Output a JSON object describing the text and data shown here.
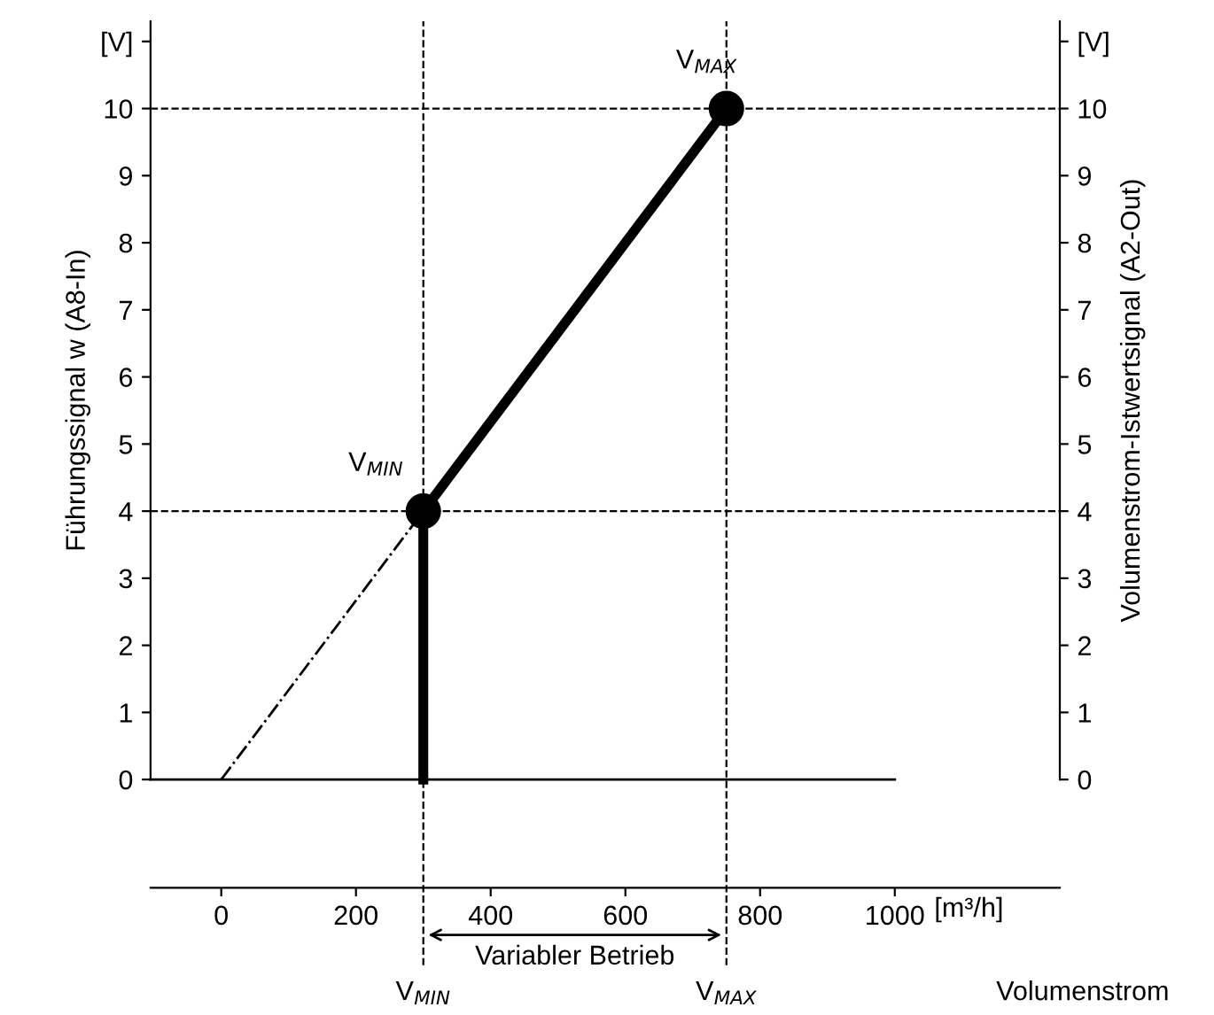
{
  "chart_data": {
    "type": "line",
    "xlabel": "[m³/h]",
    "ylabel": "Führungssignal w (A8-In)",
    "y2label": "Volumenstrom-Istwertsignal (A2-Out)",
    "xlim": [
      -105,
      1245
    ],
    "ylim": [
      0,
      11.3
    ],
    "y2lim": [
      0,
      11.3
    ],
    "xticks": [
      0,
      200,
      400,
      600,
      800,
      1000
    ],
    "yticks": [
      0,
      1,
      2,
      3,
      4,
      5,
      6,
      7,
      8,
      9,
      10,
      {
        "value": 11,
        "label": "[V]"
      }
    ],
    "y2ticks": [
      0,
      1,
      2,
      3,
      4,
      5,
      6,
      7,
      8,
      9,
      10,
      {
        "value": 11,
        "label": "[V]"
      }
    ],
    "series": [
      {
        "x": [
          -105,
          1000
        ],
        "values": [
          0,
          0
        ],
        "color": "#000000",
        "marker": "none",
        "line_style": "solid"
      },
      {
        "x": [
          0,
          300
        ],
        "values": [
          0,
          4
        ],
        "color": "#000000",
        "marker": "none",
        "line_style": "dashdot"
      },
      {
        "x": [
          300,
          300,
          750
        ],
        "values": [
          0,
          4,
          10
        ],
        "color": "#000000",
        "marker": "none",
        "line_style": "solid"
      },
      {
        "type": "scatter",
        "x": [
          300,
          750
        ],
        "values": [
          4,
          10
        ],
        "color": "#000000",
        "marker": "circle"
      }
    ],
    "ref_lines": [
      {
        "axis": "y",
        "value": 4,
        "line_style": "dashed",
        "color": "#000000"
      },
      {
        "axis": "y",
        "value": 10,
        "line_style": "dashed",
        "color": "#000000"
      },
      {
        "axis": "x",
        "value": 300,
        "line_style": "dashed",
        "color": "#000000"
      },
      {
        "axis": "x",
        "value": 750,
        "line_style": "dashed",
        "color": "#000000"
      }
    ],
    "annotations": [
      "V$_{MIN}$",
      "V$_{MAX}$",
      "V$_{MIN}$",
      "V$_{MAX}$",
      "Variabler Betrieb",
      "Volumenstrom"
    ],
    "grid": false
  }
}
